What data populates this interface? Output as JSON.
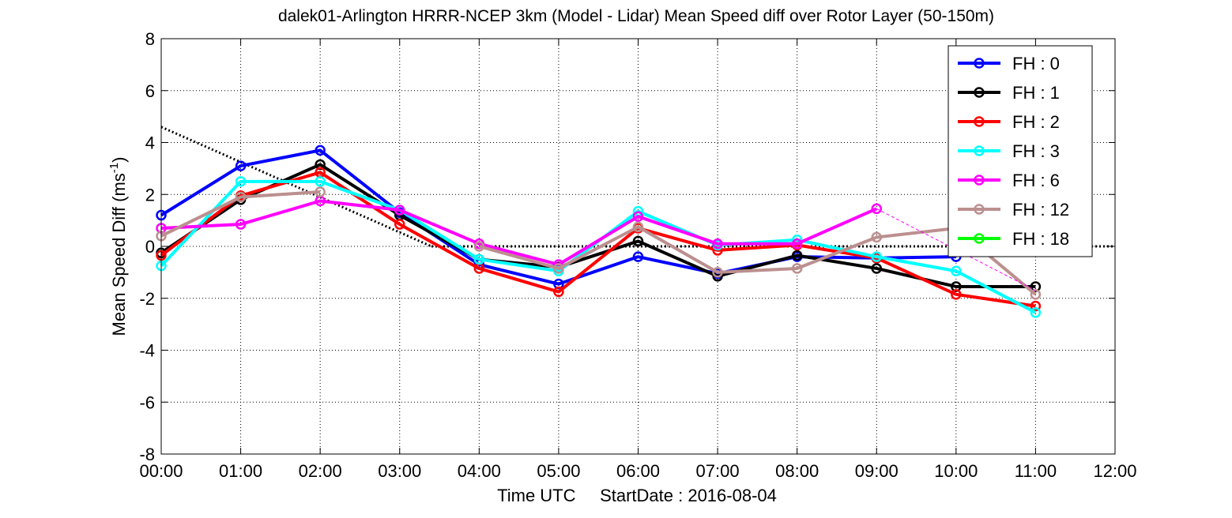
{
  "chart_data": {
    "type": "line",
    "title": "dalek01-Arlington HRRR-NCEP 3km (Model - Lidar) Mean Speed diff over Rotor Layer (50-150m)",
    "xlabel": "Time UTC     StartDate : 2016-08-04",
    "ylabel_main": "Mean Speed Diff (ms",
    "ylabel_sup": "-1",
    "ylabel_close": ")",
    "xlim": [
      0,
      12
    ],
    "ylim": [
      -8,
      8
    ],
    "grid": true,
    "legend_position": "top-right",
    "x_tick_labels": [
      "00:00",
      "01:00",
      "02:00",
      "03:00",
      "04:00",
      "05:00",
      "06:00",
      "07:00",
      "08:00",
      "09:00",
      "10:00",
      "11:00",
      "12:00"
    ],
    "y_ticks": [
      -8,
      -6,
      -4,
      -2,
      0,
      2,
      4,
      6,
      8
    ],
    "y_tick_labels": [
      "-8",
      "-6",
      "-4",
      "-2",
      "0",
      "2",
      "4",
      "6",
      "8"
    ],
    "reference_lines": [
      {
        "style": "dotted",
        "color": "#000000",
        "points": [
          [
            0,
            4.6
          ],
          [
            3.4,
            0.0
          ]
        ]
      },
      {
        "style": "dotted",
        "color": "#000000",
        "points": [
          [
            3.4,
            0.0
          ],
          [
            12,
            0.0
          ]
        ]
      }
    ],
    "series": [
      {
        "name": "FH : 0",
        "color": "#0000ff",
        "x": [
          0,
          1,
          2,
          3,
          4,
          5,
          6,
          7,
          8,
          9,
          10
        ],
        "y": [
          1.2,
          3.1,
          3.7,
          1.3,
          -0.7,
          -1.45,
          -0.4,
          -1.05,
          -0.4,
          -0.45,
          -0.4
        ]
      },
      {
        "name": "FH : 1",
        "color": "#000000",
        "x": [
          0,
          1,
          2,
          3,
          4,
          5,
          6,
          7,
          8,
          9,
          10,
          11
        ],
        "y": [
          -0.25,
          1.8,
          3.15,
          1.2,
          -0.5,
          -0.8,
          0.2,
          -1.15,
          -0.35,
          -0.85,
          -1.55,
          -1.55
        ]
      },
      {
        "name": "FH : 2",
        "color": "#ff0000",
        "x": [
          0,
          1,
          2,
          3,
          4,
          5,
          6,
          7,
          8,
          9,
          10,
          11
        ],
        "y": [
          -0.35,
          1.95,
          2.85,
          0.85,
          -0.85,
          -1.75,
          0.7,
          -0.15,
          0.05,
          -0.45,
          -1.85,
          -2.3
        ]
      },
      {
        "name": "FH : 3",
        "color": "#00ffff",
        "x": [
          0,
          1,
          2,
          3,
          4,
          5,
          6,
          7,
          8,
          9,
          10,
          11
        ],
        "y": [
          -0.75,
          2.5,
          2.5,
          1.4,
          -0.5,
          -0.95,
          1.35,
          0.05,
          0.25,
          -0.4,
          -0.95,
          -2.55
        ]
      },
      {
        "name": "FH : 6",
        "color": "#ff00ff",
        "x": [
          0,
          1,
          2,
          3,
          4,
          5,
          6,
          7,
          8,
          9
        ],
        "y": [
          0.7,
          0.85,
          1.75,
          1.4,
          0.1,
          -0.7,
          1.15,
          0.1,
          0.1,
          1.45
        ]
      },
      {
        "name": "FH : 12",
        "color": "#bc8f8f",
        "x": [
          0,
          1,
          2,
          3,
          4,
          5,
          6,
          7,
          8,
          9,
          10,
          11
        ],
        "y": [
          0.4,
          1.9,
          2.1,
          null,
          0.0,
          -0.85,
          0.75,
          -1.0,
          -0.85,
          0.35,
          0.7,
          -1.85
        ]
      },
      {
        "name": "FH : 18",
        "color": "#00ff00",
        "x": [],
        "y": []
      }
    ],
    "dashed_connector": {
      "color": "#ff00ff",
      "points": [
        [
          9,
          1.45
        ],
        [
          11,
          -1.7
        ]
      ]
    }
  }
}
